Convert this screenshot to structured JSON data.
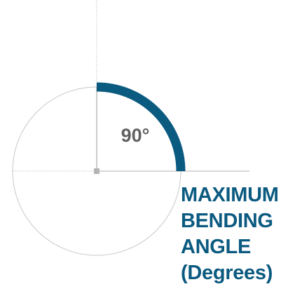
{
  "angle": {
    "value_label": "90°",
    "degrees": 90
  },
  "caption": {
    "lines": [
      "MAXIMUM",
      "BENDING",
      "ANGLE",
      "(Degrees)"
    ]
  },
  "colors": {
    "accent": "#0b5a80",
    "label_gray": "#606060",
    "circle_stroke": "#c8c8c8",
    "vertical_line": "#9a9a9a",
    "horizontal_line": "#b0b0b0",
    "dashed_line": "#c0c0c0",
    "center_marker": "#b4b4b4"
  }
}
